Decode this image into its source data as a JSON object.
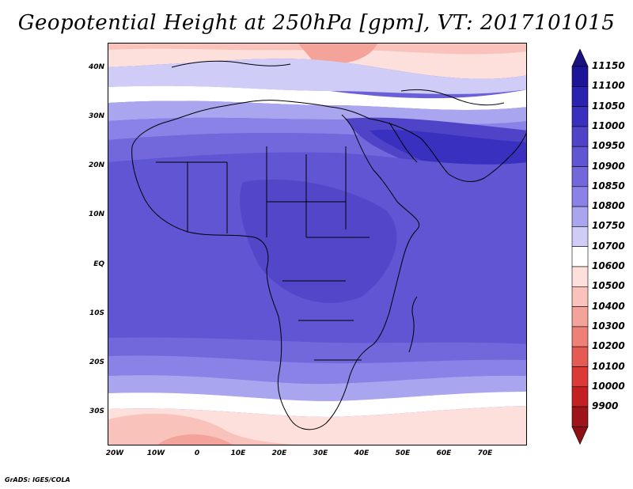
{
  "title": "Geopotential Height at 250hPa [gpm], VT: 2017101015",
  "footer": "GrADS: IGES/COLA",
  "lat_labels": [
    "40N",
    "30N",
    "20N",
    "10N",
    "EQ",
    "10S",
    "20S",
    "30S"
  ],
  "lon_labels": [
    "20W",
    "10W",
    "0",
    "10E",
    "20E",
    "30E",
    "40E",
    "50E",
    "60E",
    "70E"
  ],
  "colorbar": {
    "labels": [
      "11150",
      "11100",
      "11050",
      "11000",
      "10950",
      "10900",
      "10850",
      "10800",
      "10750",
      "10700",
      "10600",
      "10500",
      "10400",
      "10300",
      "10200",
      "10100",
      "10000",
      "9900"
    ],
    "colors": [
      "#1c1499",
      "#2a23b0",
      "#3930c0",
      "#4f44c8",
      "#6055d2",
      "#7268dc",
      "#8a82e6",
      "#aaa5ef",
      "#cfcdf8",
      "#ffffff",
      "#fde0dc",
      "#f9c3bb",
      "#f3a39a",
      "#ee8076",
      "#e65a54",
      "#db3a36",
      "#c42024",
      "#9e1418"
    ],
    "top_arrow_color": "#1a1080",
    "bottom_arrow_color": "#8e1014"
  },
  "map": {
    "land_color_band": "#6a5fd8",
    "ocean_tint": "#7a70e0"
  }
}
